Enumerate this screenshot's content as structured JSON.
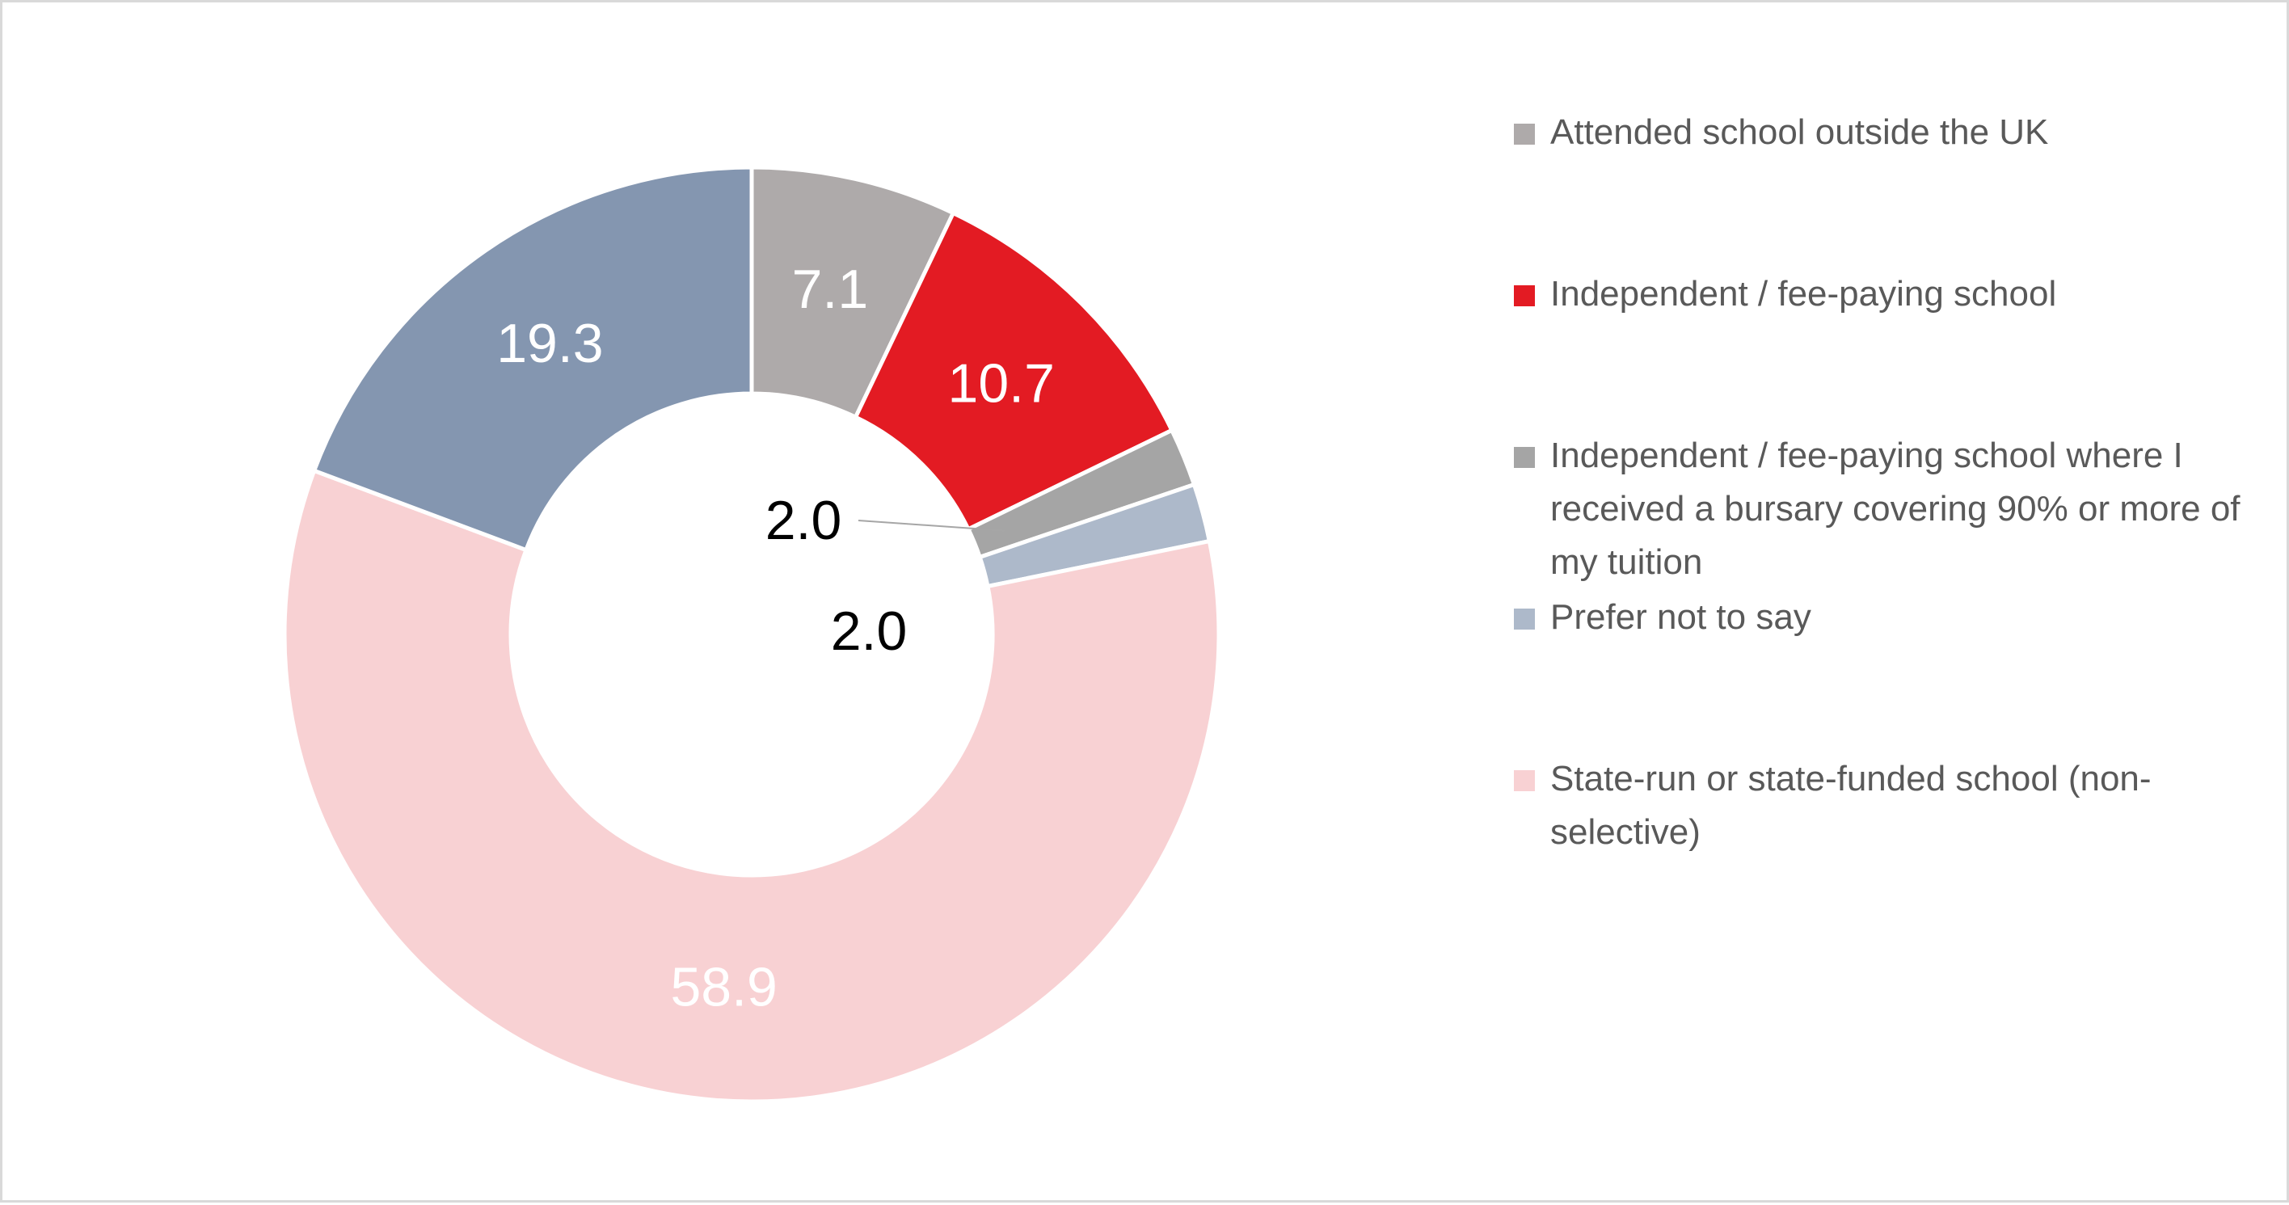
{
  "chart_data": {
    "type": "pie",
    "style": "donut",
    "title": "",
    "categories": [
      "Attended school outside the UK",
      "Independent / fee-paying school",
      "Independent / fee-paying school where I received a bursary covering 90% or more of my tuition",
      "Prefer not to say",
      "State-run or state-funded school (non-selective)",
      ""
    ],
    "values": [
      7.1,
      10.7,
      2.0,
      2.0,
      58.9,
      19.3
    ],
    "data_labels": [
      "7.1",
      "10.7",
      "2.0",
      "2.0",
      "58.9",
      "19.3"
    ],
    "colors": [
      "#aeaaaa",
      "#e31b23",
      "#a5a5a5",
      "#adb9ca",
      "#f8d1d3",
      "#8496b0"
    ],
    "label_colors": [
      "#ffffff",
      "#ffffff",
      "#000000",
      "#000000",
      "#ffffff",
      "#ffffff"
    ],
    "legend": {
      "position": "right",
      "entries": [
        {
          "label": "Attended school outside the UK",
          "color": "#aeaaaa"
        },
        {
          "label": "Independent / fee-paying school",
          "color": "#e31b23"
        },
        {
          "label": "Independent / fee-paying school where I received a bursary covering 90% or more of my tuition",
          "color": "#a5a5a5"
        },
        {
          "label": "Prefer not to say",
          "color": "#adb9ca"
        },
        {
          "label": "State-run or state-funded school (non-selective)",
          "color": "#f8d1d3"
        }
      ]
    }
  }
}
